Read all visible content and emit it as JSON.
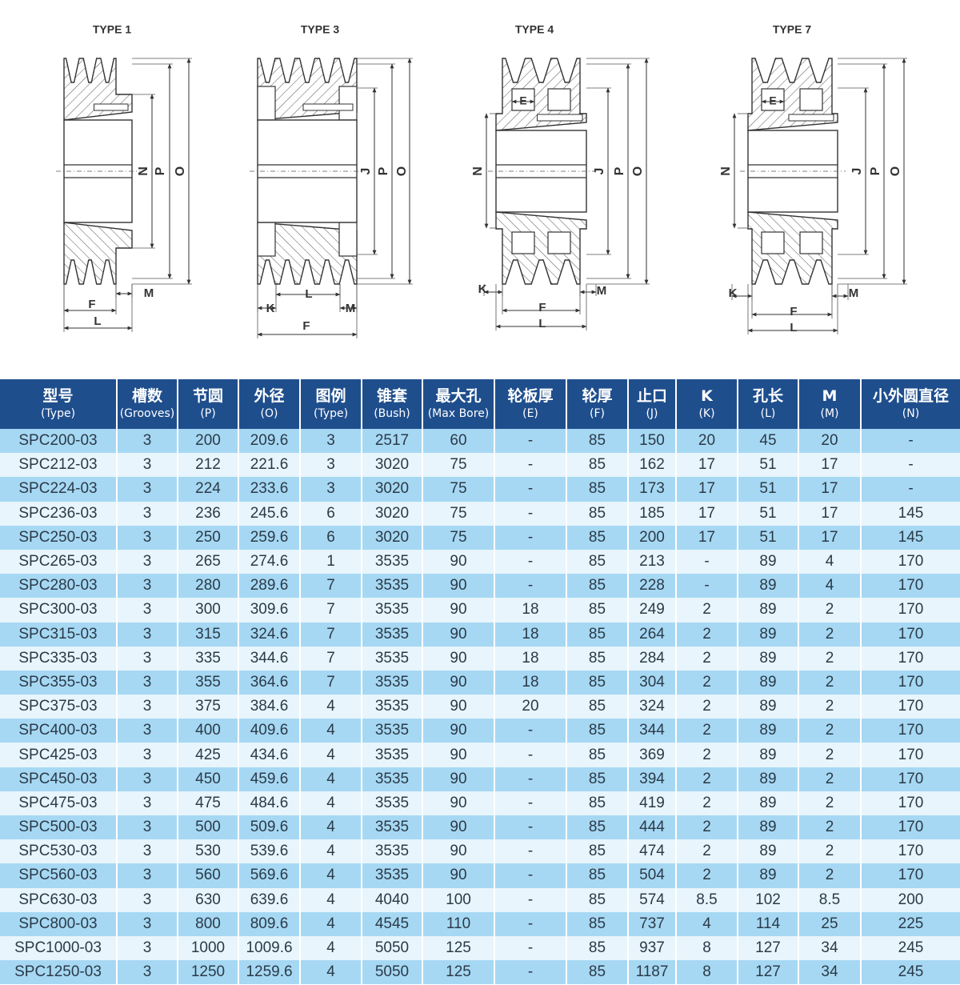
{
  "diagrams": [
    {
      "title": "TYPE 1",
      "labels": {
        "N": "N",
        "P": "P",
        "O": "O",
        "F": "F",
        "L": "L",
        "M": "M"
      }
    },
    {
      "title": "TYPE 3",
      "labels": {
        "J": "J",
        "P": "P",
        "O": "O",
        "F": "F",
        "L": "L",
        "M": "M",
        "K": "K"
      }
    },
    {
      "title": "TYPE 4",
      "labels": {
        "N": "N",
        "J": "J",
        "P": "P",
        "O": "O",
        "F": "F",
        "L": "L",
        "M": "M",
        "K": "K",
        "E": "E"
      }
    },
    {
      "title": "TYPE 7",
      "labels": {
        "N": "N",
        "J": "J",
        "P": "P",
        "O": "O",
        "F": "F",
        "L": "L",
        "M": "M",
        "K": "K",
        "E": "E"
      }
    }
  ],
  "colors": {
    "header": "#1f4e8d",
    "row_odd": "#a6d8f3",
    "row_even": "#e8f5fc"
  },
  "table": {
    "headers": [
      {
        "zh": "型号",
        "en": "(Type)"
      },
      {
        "zh": "槽数",
        "en": "(Grooves)"
      },
      {
        "zh": "节圆",
        "en": "(P)"
      },
      {
        "zh": "外径",
        "en": "(O)"
      },
      {
        "zh": "图例",
        "en": "(Type)"
      },
      {
        "zh": "锥套",
        "en": "(Bush)"
      },
      {
        "zh": "最大孔",
        "en": "(Max Bore)"
      },
      {
        "zh": "轮板厚",
        "en": "(E)"
      },
      {
        "zh": "轮厚",
        "en": "(F)"
      },
      {
        "zh": "止口",
        "en": "(J)"
      },
      {
        "zh": "K",
        "en": "(K)"
      },
      {
        "zh": "孔长",
        "en": "(L)"
      },
      {
        "zh": "M",
        "en": "(M)"
      },
      {
        "zh": "小外圆直径",
        "en": "(N)"
      }
    ],
    "rows": [
      [
        "SPC200-03",
        "3",
        "200",
        "209.6",
        "3",
        "2517",
        "60",
        "-",
        "85",
        "150",
        "20",
        "45",
        "20",
        "-"
      ],
      [
        "SPC212-03",
        "3",
        "212",
        "221.6",
        "3",
        "3020",
        "75",
        "-",
        "85",
        "162",
        "17",
        "51",
        "17",
        "-"
      ],
      [
        "SPC224-03",
        "3",
        "224",
        "233.6",
        "3",
        "3020",
        "75",
        "-",
        "85",
        "173",
        "17",
        "51",
        "17",
        "-"
      ],
      [
        "SPC236-03",
        "3",
        "236",
        "245.6",
        "6",
        "3020",
        "75",
        "-",
        "85",
        "185",
        "17",
        "51",
        "17",
        "145"
      ],
      [
        "SPC250-03",
        "3",
        "250",
        "259.6",
        "6",
        "3020",
        "75",
        "-",
        "85",
        "200",
        "17",
        "51",
        "17",
        "145"
      ],
      [
        "SPC265-03",
        "3",
        "265",
        "274.6",
        "1",
        "3535",
        "90",
        "-",
        "85",
        "213",
        "-",
        "89",
        "4",
        "170"
      ],
      [
        "SPC280-03",
        "3",
        "280",
        "289.6",
        "7",
        "3535",
        "90",
        "-",
        "85",
        "228",
        "-",
        "89",
        "4",
        "170"
      ],
      [
        "SPC300-03",
        "3",
        "300",
        "309.6",
        "7",
        "3535",
        "90",
        "18",
        "85",
        "249",
        "2",
        "89",
        "2",
        "170"
      ],
      [
        "SPC315-03",
        "3",
        "315",
        "324.6",
        "7",
        "3535",
        "90",
        "18",
        "85",
        "264",
        "2",
        "89",
        "2",
        "170"
      ],
      [
        "SPC335-03",
        "3",
        "335",
        "344.6",
        "7",
        "3535",
        "90",
        "18",
        "85",
        "284",
        "2",
        "89",
        "2",
        "170"
      ],
      [
        "SPC355-03",
        "3",
        "355",
        "364.6",
        "7",
        "3535",
        "90",
        "18",
        "85",
        "304",
        "2",
        "89",
        "2",
        "170"
      ],
      [
        "SPC375-03",
        "3",
        "375",
        "384.6",
        "4",
        "3535",
        "90",
        "20",
        "85",
        "324",
        "2",
        "89",
        "2",
        "170"
      ],
      [
        "SPC400-03",
        "3",
        "400",
        "409.6",
        "4",
        "3535",
        "90",
        "-",
        "85",
        "344",
        "2",
        "89",
        "2",
        "170"
      ],
      [
        "SPC425-03",
        "3",
        "425",
        "434.6",
        "4",
        "3535",
        "90",
        "-",
        "85",
        "369",
        "2",
        "89",
        "2",
        "170"
      ],
      [
        "SPC450-03",
        "3",
        "450",
        "459.6",
        "4",
        "3535",
        "90",
        "-",
        "85",
        "394",
        "2",
        "89",
        "2",
        "170"
      ],
      [
        "SPC475-03",
        "3",
        "475",
        "484.6",
        "4",
        "3535",
        "90",
        "-",
        "85",
        "419",
        "2",
        "89",
        "2",
        "170"
      ],
      [
        "SPC500-03",
        "3",
        "500",
        "509.6",
        "4",
        "3535",
        "90",
        "-",
        "85",
        "444",
        "2",
        "89",
        "2",
        "170"
      ],
      [
        "SPC530-03",
        "3",
        "530",
        "539.6",
        "4",
        "3535",
        "90",
        "-",
        "85",
        "474",
        "2",
        "89",
        "2",
        "170"
      ],
      [
        "SPC560-03",
        "3",
        "560",
        "569.6",
        "4",
        "3535",
        "90",
        "-",
        "85",
        "504",
        "2",
        "89",
        "2",
        "170"
      ],
      [
        "SPC630-03",
        "3",
        "630",
        "639.6",
        "4",
        "4040",
        "100",
        "-",
        "85",
        "574",
        "8.5",
        "102",
        "8.5",
        "200"
      ],
      [
        "SPC800-03",
        "3",
        "800",
        "809.6",
        "4",
        "4545",
        "110",
        "-",
        "85",
        "737",
        "4",
        "114",
        "25",
        "225"
      ],
      [
        "SPC1000-03",
        "3",
        "1000",
        "1009.6",
        "4",
        "5050",
        "125",
        "-",
        "85",
        "937",
        "8",
        "127",
        "34",
        "245"
      ],
      [
        "SPC1250-03",
        "3",
        "1250",
        "1259.6",
        "4",
        "5050",
        "125",
        "-",
        "85",
        "1187",
        "8",
        "127",
        "34",
        "245"
      ]
    ]
  }
}
